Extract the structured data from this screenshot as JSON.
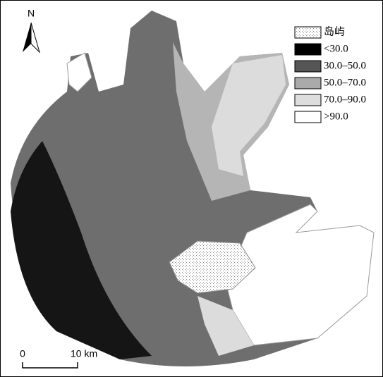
{
  "north_arrow": {
    "label": "N"
  },
  "legend": {
    "items": [
      {
        "label": "岛屿"
      },
      {
        "label": "<30.0"
      },
      {
        "label": "30.0–50.0"
      },
      {
        "label": "50.0–70.0"
      },
      {
        "label": "70.0–90.0"
      },
      {
        "label": ">90.0"
      }
    ]
  },
  "scale_bar": {
    "labels": [
      "0",
      "10 km"
    ]
  }
}
